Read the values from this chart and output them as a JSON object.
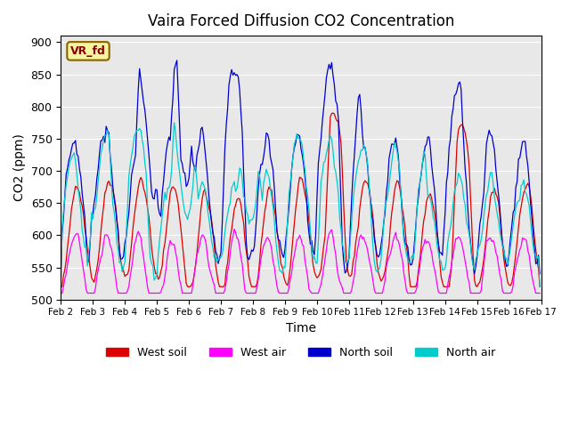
{
  "title": "Vaira Forced Diffusion CO2 Concentration",
  "xlabel": "Time",
  "ylabel": "CO2 (ppm)",
  "ylim": [
    500,
    910
  ],
  "xlim_max": 360,
  "label_box_text": "VR_fd",
  "label_box_facecolor": "#f5f5a0",
  "label_box_edgecolor": "#8b6000",
  "label_box_textcolor": "#8b0000",
  "plot_bg": "#e8e8e8",
  "colors": {
    "west_soil": "#dd0000",
    "west_air": "#ff00ff",
    "north_soil": "#0000cc",
    "north_air": "#00cccc"
  },
  "legend_labels": [
    "West soil",
    "West air",
    "North soil",
    "North air"
  ],
  "xtick_labels": [
    "Feb 2",
    "Feb 3",
    "Feb 4",
    "Feb 5",
    "Feb 6",
    "Feb 7",
    "Feb 8",
    "Feb 9",
    "Feb 10",
    "Feb 11",
    "Feb 12",
    "Feb 13",
    "Feb 14",
    "Feb 15",
    "Feb 16",
    "Feb 17"
  ],
  "ytick_values": [
    500,
    550,
    600,
    650,
    700,
    750,
    800,
    850,
    900
  ]
}
